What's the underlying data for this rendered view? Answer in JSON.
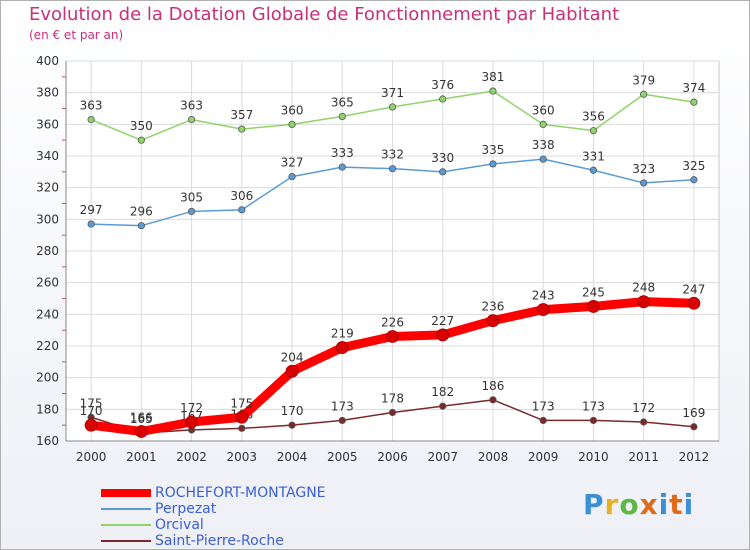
{
  "title": "Evolution de la Dotation Globale de Fonctionnement par Habitant",
  "subtitle": "(en € et par an)",
  "logo": {
    "text": "Proxiti",
    "colors": [
      "#3a8fd6",
      "#e8b224",
      "#5bb843",
      "#e06a1a",
      "#3a8fd6",
      "#e06a1a"
    ]
  },
  "chart_data": {
    "type": "line",
    "title": "Evolution de la Dotation Globale de Fonctionnement par Habitant",
    "subtitle": "(en € et par an)",
    "x": [
      2000,
      2001,
      2002,
      2003,
      2004,
      2005,
      2006,
      2007,
      2008,
      2009,
      2010,
      2011,
      2012
    ],
    "ylim": [
      160,
      400
    ],
    "yticks": [
      160,
      180,
      200,
      220,
      240,
      260,
      280,
      300,
      320,
      340,
      360,
      380,
      400
    ],
    "grid": true,
    "legend_position": "bottom-left",
    "series": [
      {
        "name": "ROCHEFORT-MONTAGNE",
        "color": "#ff0000",
        "emphasis": true,
        "values": [
          170,
          166,
          172,
          175,
          204,
          219,
          226,
          227,
          236,
          243,
          245,
          248,
          247
        ],
        "labels": [
          "170",
          "166",
          "172",
          "175",
          "204",
          "219",
          "226",
          "227",
          "236",
          "243",
          "245",
          "248",
          "247"
        ]
      },
      {
        "name": "Perpezat",
        "color": "#5b9bd5",
        "emphasis": false,
        "values": [
          297,
          296,
          305,
          306,
          327,
          333,
          332,
          330,
          335,
          338,
          331,
          323,
          325
        ],
        "labels": [
          "297",
          "296",
          "305",
          "306",
          "327",
          "333",
          "332",
          "330",
          "335",
          "338",
          "331",
          "323",
          "325"
        ]
      },
      {
        "name": "Orcival",
        "color": "#8fd46a",
        "emphasis": false,
        "values": [
          363,
          350,
          363,
          357,
          360,
          365,
          371,
          376,
          381,
          360,
          356,
          379,
          374
        ],
        "labels": [
          "363",
          "350",
          "363",
          "357",
          "360",
          "365",
          "371",
          "376",
          "381",
          "360",
          "356",
          "379",
          "374"
        ]
      },
      {
        "name": "Saint-Pierre-Roche",
        "color": "#7a2a2a",
        "emphasis": false,
        "values": [
          175,
          165,
          167,
          168,
          170,
          173,
          178,
          182,
          186,
          173,
          173,
          172,
          169
        ],
        "labels": [
          "175",
          "165",
          "167",
          "168",
          "170",
          "173",
          "178",
          "182",
          "186",
          "173",
          "173",
          "172",
          "169"
        ]
      }
    ]
  }
}
